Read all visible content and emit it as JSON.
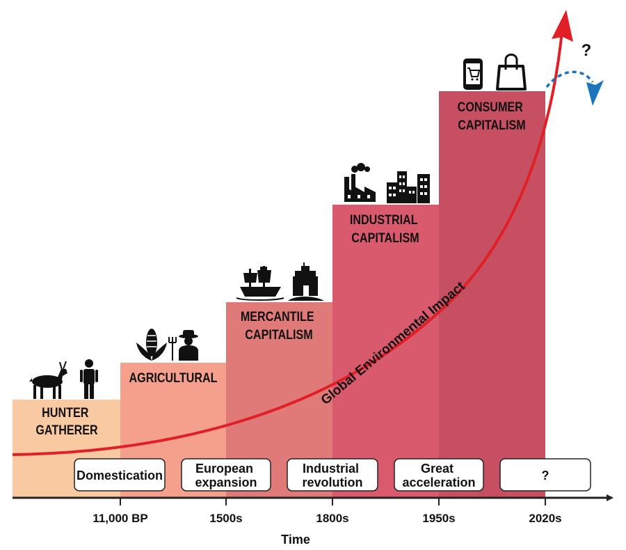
{
  "stages": [
    {
      "id": "hunter",
      "lines": [
        "HUNTER",
        "GATHERER"
      ],
      "color": "#f9c9a2",
      "icons": [
        "deer-icon",
        "person-icon"
      ]
    },
    {
      "id": "agricultural",
      "lines": [
        "AGRICULTURAL"
      ],
      "color": "#f4a08c",
      "icons": [
        "corn-icon",
        "farmer-icon"
      ]
    },
    {
      "id": "mercantile",
      "lines": [
        "MERCANTILE",
        "CAPITALISM"
      ],
      "color": "#e07a78",
      "icons": [
        "ship-icon",
        "castle-icon"
      ]
    },
    {
      "id": "industrial",
      "lines": [
        "INDUSTRIAL",
        "CAPITALISM"
      ],
      "color": "#d95a6c",
      "icons": [
        "factory-icon",
        "buildings-icon"
      ]
    },
    {
      "id": "consumer",
      "lines": [
        "CONSUMER",
        "CAPITALISM"
      ],
      "color": "#c64f62",
      "icons": [
        "phone-cart-icon",
        "shopping-bag-icon"
      ]
    }
  ],
  "events": [
    {
      "id": "domestication",
      "lines": [
        "Domestication"
      ]
    },
    {
      "id": "european",
      "lines": [
        "European",
        "expansion"
      ]
    },
    {
      "id": "industrial",
      "lines": [
        "Industrial",
        "revolution"
      ]
    },
    {
      "id": "great",
      "lines": [
        "Great",
        "acceleration"
      ]
    },
    {
      "id": "unknown",
      "lines": [
        "?"
      ]
    }
  ],
  "ticks": [
    "11,000 BP",
    "1500s",
    "1800s",
    "1950s",
    "2020s"
  ],
  "axis_title": "Time",
  "curve_label": "Global Environmental Impact",
  "future_mark": "?",
  "colors": {
    "impact_curve": "#e11f26",
    "alternative_path": "#1b75bc",
    "axis": "#222222"
  }
}
